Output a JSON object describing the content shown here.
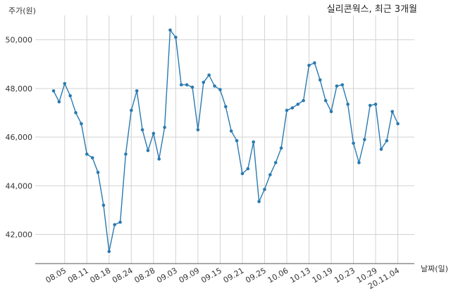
{
  "chart_data": {
    "type": "line",
    "title": "실리콘웍스, 최근 3개월",
    "xlabel": "날짜(일)",
    "ylabel": "주가(원)",
    "ylim": [
      40800,
      51000
    ],
    "yticks": [
      42000,
      44000,
      46000,
      48000,
      50000
    ],
    "ytick_labels": [
      "42,000",
      "44,000",
      "46,000",
      "48,000",
      "50,000"
    ],
    "grid": true,
    "line_color": "#2a7ab0",
    "tick_labels": [
      {
        "label": "08.05",
        "index": 2
      },
      {
        "label": "08.11",
        "index": 6
      },
      {
        "label": "08.18",
        "index": 10
      },
      {
        "label": "08.24",
        "index": 14
      },
      {
        "label": "08.28",
        "index": 18
      },
      {
        "label": "09.03",
        "index": 22
      },
      {
        "label": "09.09",
        "index": 26
      },
      {
        "label": "09.15",
        "index": 30
      },
      {
        "label": "09.21",
        "index": 34
      },
      {
        "label": "09.25",
        "index": 38
      },
      {
        "label": "10.06",
        "index": 42
      },
      {
        "label": "10.13",
        "index": 46
      },
      {
        "label": "10.19",
        "index": 50
      },
      {
        "label": "10.23",
        "index": 54
      },
      {
        "label": "10.29",
        "index": 58
      },
      {
        "label": "20.11.04",
        "index": 62
      }
    ],
    "series": [
      {
        "values": [
          47900,
          47450,
          48200,
          47700,
          47000,
          46550,
          45300,
          45150,
          44550,
          43200,
          41300,
          42400,
          42500,
          45300,
          47100,
          47900,
          46300,
          45450,
          46150,
          45100,
          46400,
          50400,
          50100,
          48150,
          48150,
          48050,
          46300,
          48250,
          48550,
          48100,
          47950,
          47250,
          46250,
          45850,
          44500,
          44700,
          45800,
          43350,
          43850,
          44450,
          44950,
          45550,
          47100,
          47200,
          47350,
          47500,
          48950,
          49050,
          48350,
          47500,
          47050,
          48100,
          48150,
          47350,
          45750,
          44950,
          45900,
          47300,
          47350,
          45500,
          45850,
          47050,
          46550
        ]
      }
    ]
  }
}
